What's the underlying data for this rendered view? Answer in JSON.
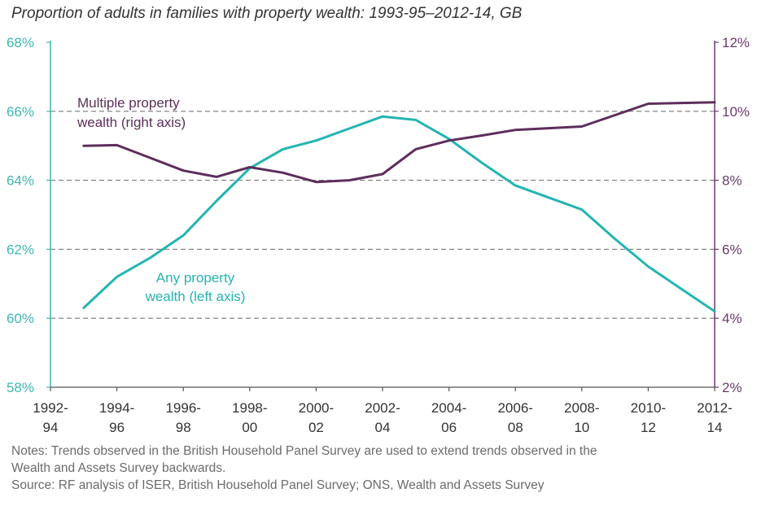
{
  "title": "Proportion of adults in families with property wealth: 1993-95–2012-14, GB",
  "chart_data": {
    "type": "line",
    "x_labels": [
      [
        "1992-",
        "94"
      ],
      [
        "1994-",
        "96"
      ],
      [
        "1996-",
        "98"
      ],
      [
        "1998-",
        "00"
      ],
      [
        "2000-",
        "02"
      ],
      [
        "2002-",
        "04"
      ],
      [
        "2004-",
        "06"
      ],
      [
        "2006-",
        "08"
      ],
      [
        "2008-",
        "10"
      ],
      [
        "2010-",
        "12"
      ],
      [
        "2012-",
        "14"
      ]
    ],
    "y_left": {
      "ticks": [
        "58%",
        "60%",
        "62%",
        "64%",
        "66%",
        "68%"
      ],
      "range": [
        58,
        68
      ]
    },
    "y_right": {
      "ticks": [
        "2%",
        "4%",
        "6%",
        "8%",
        "10%",
        "12%"
      ],
      "range": [
        2,
        12
      ]
    },
    "grid": "horizontal dashed",
    "series": [
      {
        "name": "Any property wealth (left axis)",
        "label_lines": [
          "Any property",
          "wealth (left axis)"
        ],
        "axis": "left",
        "color": "#23b5b0",
        "x": [
          1993,
          1994,
          1995,
          1996,
          1997,
          1998,
          1999,
          2000,
          2001,
          2002,
          2003,
          2004,
          2005,
          2006,
          2007,
          2008,
          2009,
          2010,
          2011,
          2012
        ],
        "values": [
          60.3,
          61.2,
          61.75,
          62.4,
          63.4,
          64.35,
          64.9,
          65.15,
          65.5,
          65.85,
          65.75,
          65.2,
          64.5,
          63.85,
          63.5,
          63.15,
          62.3,
          61.5,
          60.85,
          60.2
        ]
      },
      {
        "name": "Multiple property wealth (right axis)",
        "label_lines": [
          "Multiple property",
          "wealth (right axis)"
        ],
        "axis": "right",
        "color": "#5d2e5c",
        "x": [
          1993,
          1994,
          1995,
          1996,
          1997,
          1998,
          1999,
          2000,
          2001,
          2002,
          2003,
          2004,
          2005,
          2006,
          2007,
          2008,
          2009,
          2010,
          2011,
          2012
        ],
        "values": [
          9.0,
          9.02,
          8.65,
          8.28,
          8.1,
          8.38,
          8.22,
          7.95,
          8.0,
          8.18,
          8.9,
          9.15,
          9.3,
          9.46,
          9.51,
          9.56,
          9.89,
          10.22,
          10.24,
          10.26
        ]
      }
    ]
  },
  "notes": [
    "Notes: Trends observed in the British Household Panel Survey are used to extend trends observed in the",
    "Wealth and Assets Survey backwards.",
    "Source: RF analysis of ISER, British Household Panel Survey; ONS, Wealth and Assets Survey"
  ]
}
